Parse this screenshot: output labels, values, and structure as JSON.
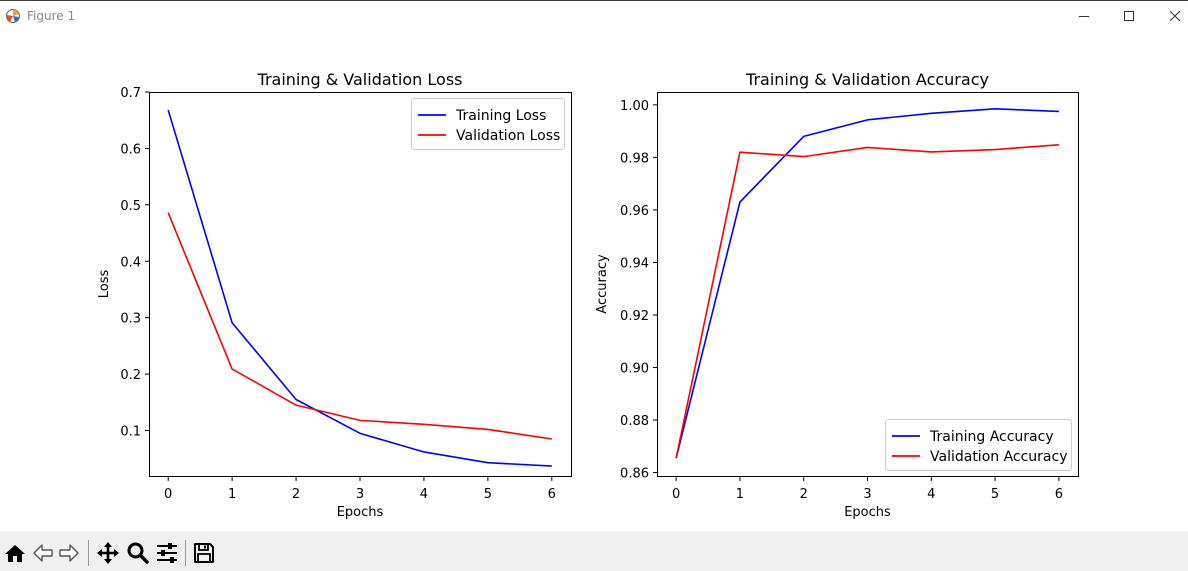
{
  "window": {
    "title": "Figure 1"
  },
  "colors": {
    "training": "#0000ff",
    "validation": "#ff0000",
    "axis": "#000000"
  },
  "toolbar": {
    "home_icon": "home-icon",
    "back_icon": "back-arrow-icon",
    "forward_icon": "forward-arrow-icon",
    "pan_icon": "pan-icon",
    "zoom_icon": "zoom-icon",
    "configure_icon": "configure-subplots-icon",
    "save_icon": "save-icon"
  },
  "chart_data": [
    {
      "type": "line",
      "title": "Training & Validation Loss",
      "xlabel": "Epochs",
      "ylabel": "Loss",
      "x": [
        0,
        1,
        2,
        3,
        4,
        5,
        6
      ],
      "xlim": [
        -0.3,
        6.3
      ],
      "ylim": [
        0.0194,
        0.7
      ],
      "xticks": [
        0,
        1,
        2,
        3,
        4,
        5,
        6
      ],
      "xtick_labels": [
        "0",
        "1",
        "2",
        "3",
        "4",
        "5",
        "6"
      ],
      "yticks": [
        0.1,
        0.2,
        0.3,
        0.4,
        0.5,
        0.6,
        0.7
      ],
      "ytick_labels": [
        "0.1",
        "0.2",
        "0.3",
        "0.4",
        "0.5",
        "0.6",
        "0.7"
      ],
      "legend_position": "upper right",
      "series": [
        {
          "name": "Training Loss",
          "color": "#0000ff",
          "values": [
            0.668,
            0.291,
            0.155,
            0.095,
            0.062,
            0.043,
            0.037
          ]
        },
        {
          "name": "Validation Loss",
          "color": "#ff0000",
          "values": [
            0.486,
            0.209,
            0.145,
            0.118,
            0.111,
            0.102,
            0.085
          ]
        }
      ]
    },
    {
      "type": "line",
      "title": "Training & Validation Accuracy",
      "xlabel": "Epochs",
      "ylabel": "Accuracy",
      "x": [
        0,
        1,
        2,
        3,
        4,
        5,
        6
      ],
      "xlim": [
        -0.3,
        6.3
      ],
      "ylim": [
        0.8587,
        1.0049
      ],
      "xticks": [
        0,
        1,
        2,
        3,
        4,
        5,
        6
      ],
      "xtick_labels": [
        "0",
        "1",
        "2",
        "3",
        "4",
        "5",
        "6"
      ],
      "yticks": [
        0.86,
        0.88,
        0.9,
        0.92,
        0.94,
        0.96,
        0.98,
        1.0
      ],
      "ytick_labels": [
        "0.86",
        "0.88",
        "0.90",
        "0.92",
        "0.94",
        "0.96",
        "0.98",
        "1.00"
      ],
      "legend_position": "lower right",
      "series": [
        {
          "name": "Training Accuracy",
          "color": "#0000ff",
          "values": [
            0.8655,
            0.963,
            0.988,
            0.9943,
            0.9968,
            0.9985,
            0.9975
          ]
        },
        {
          "name": "Validation Accuracy",
          "color": "#ff0000",
          "values": [
            0.8655,
            0.982,
            0.9803,
            0.9838,
            0.9821,
            0.983,
            0.9848
          ]
        }
      ]
    }
  ]
}
